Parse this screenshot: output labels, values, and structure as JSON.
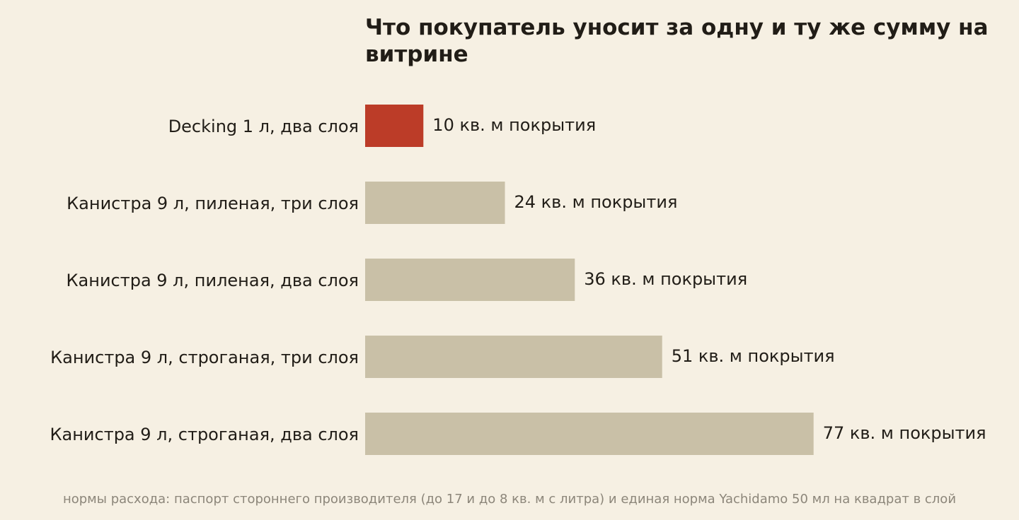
{
  "chart_data": {
    "type": "bar",
    "orientation": "horizontal",
    "title": "Что покупатель уносит за одну и ту же сумму на витрине",
    "categories": [
      "Decking 1 л, два слоя",
      "Канистра 9 л, пиленая, три слоя",
      "Канистра 9 л, пиленая, два слоя",
      "Канистра 9 л, строганая, три слоя",
      "Канистра 9 л, строганая, два слоя"
    ],
    "values": [
      10,
      24,
      36,
      51,
      77
    ],
    "value_labels": [
      "10 кв. м покрытия",
      "24 кв. м покрытия",
      "36 кв. м покрытия",
      "51 кв. м покрытия",
      "77 кв. м покрытия"
    ],
    "highlight_index": 0,
    "colors": {
      "highlight": "#bc3c28",
      "default": "#c9c0a7",
      "background": "#f6f0e3",
      "text": "#211d17",
      "footnote": "#8c867a"
    },
    "grid": false,
    "axes_visible": false,
    "footnote": "нормы расхода: паспорт стороннего производителя (до 17 и до 8 кв. м с литра) и единая норма Yachidamo 50 мл на квадрат в слой"
  }
}
